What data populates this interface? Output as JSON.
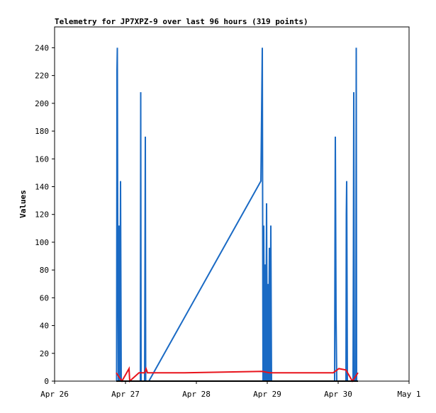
{
  "chart_data": {
    "type": "line",
    "title": "Telemetry for JP7XPZ-9 over last 96 hours (319 points)",
    "y_label": "Values",
    "xlim": [
      26,
      31
    ],
    "xticks": [
      {
        "value": 26,
        "label": "Apr 26"
      },
      {
        "value": 27,
        "label": "Apr 27"
      },
      {
        "value": 28,
        "label": "Apr 28"
      },
      {
        "value": 29,
        "label": "Apr 29"
      },
      {
        "value": 30,
        "label": "Apr 30"
      },
      {
        "value": 31,
        "label": "May 1"
      }
    ],
    "ylim": [
      0,
      255
    ],
    "yticks": [
      0,
      20,
      40,
      60,
      80,
      100,
      120,
      140,
      160,
      180,
      200,
      220,
      240
    ],
    "grid": false,
    "series": [
      {
        "color": "#1a6ac4",
        "x": [
          26.875,
          26.88,
          26.885,
          26.89,
          26.9,
          26.91,
          26.92,
          26.93,
          26.94,
          27.21,
          27.215,
          27.22,
          27.27,
          27.275,
          27.28,
          27.285,
          27.33,
          28.91,
          28.93,
          28.94,
          28.95,
          28.96,
          28.97,
          28.98,
          28.99,
          29.0,
          29.01,
          29.02,
          29.03,
          29.04,
          29.05,
          29.06,
          29.95,
          29.955,
          29.96,
          29.97,
          29.98,
          30.11,
          30.115,
          30.12,
          30.13,
          30.21,
          30.215,
          30.22,
          30.23,
          30.25,
          30.255,
          30.26
        ],
        "values": [
          0,
          224,
          240,
          120,
          0,
          112,
          0,
          144,
          0,
          0,
          208,
          0,
          0,
          88,
          176,
          0,
          0,
          144,
          240,
          0,
          112,
          0,
          84,
          0,
          128,
          0,
          70,
          0,
          96,
          0,
          112,
          0,
          0,
          96,
          176,
          48,
          0,
          0,
          120,
          144,
          0,
          0,
          96,
          208,
          0,
          0,
          240,
          0
        ]
      },
      {
        "color": "#e8141c",
        "x": [
          26.87,
          26.95,
          27.05,
          27.06,
          27.19,
          27.27,
          27.29,
          27.31,
          27.83,
          28.93,
          29.03,
          29.93,
          30.01,
          30.11,
          30.2,
          30.28
        ],
        "values": [
          6,
          0,
          9,
          0,
          6,
          6,
          9,
          6,
          6,
          7,
          6,
          6,
          9,
          8,
          0,
          6
        ]
      },
      {
        "color": "#000000",
        "x": [
          26.87,
          30.28
        ],
        "values": [
          0,
          0
        ]
      }
    ]
  }
}
